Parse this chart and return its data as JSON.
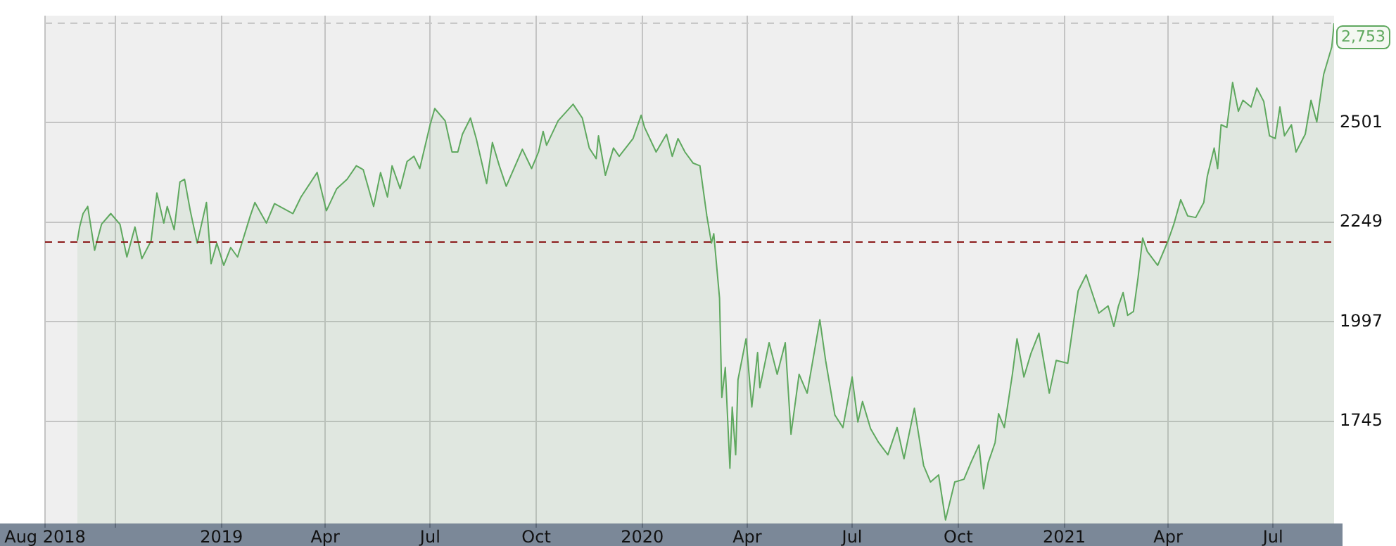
{
  "chart_data": {
    "type": "area",
    "color": "#5fa85f",
    "x": [
      "2018-08-29",
      "2018-08-31",
      "2018-09-03",
      "2018-09-07",
      "2018-09-13",
      "2018-09-19",
      "2018-09-27",
      "2018-10-05",
      "2018-10-11",
      "2018-10-18",
      "2018-10-24",
      "2018-11-01",
      "2018-11-06",
      "2018-11-12",
      "2018-11-15",
      "2018-11-21",
      "2018-11-26",
      "2018-11-30",
      "2018-12-05",
      "2018-12-11",
      "2018-12-19",
      "2018-12-23",
      "2018-12-28",
      "2019-01-03",
      "2019-01-09",
      "2019-01-15",
      "2019-01-26",
      "2019-01-30",
      "2019-02-09",
      "2019-02-16",
      "2019-03-04",
      "2019-03-11",
      "2019-03-25",
      "2019-04-02",
      "2019-04-11",
      "2019-04-20",
      "2019-04-28",
      "2019-05-04",
      "2019-05-13",
      "2019-05-19",
      "2019-05-25",
      "2019-05-29",
      "2019-06-05",
      "2019-06-11",
      "2019-06-17",
      "2019-06-22",
      "2019-07-01",
      "2019-07-05",
      "2019-07-14",
      "2019-07-20",
      "2019-07-25",
      "2019-07-29",
      "2019-08-05",
      "2019-08-10",
      "2019-08-19",
      "2019-08-24",
      "2019-08-30",
      "2019-09-05",
      "2019-09-19",
      "2019-09-27",
      "2019-10-03",
      "2019-10-07",
      "2019-10-10",
      "2019-10-20",
      "2019-11-02",
      "2019-11-10",
      "2019-11-16",
      "2019-11-22",
      "2019-11-24",
      "2019-11-30",
      "2019-12-07",
      "2019-12-12",
      "2019-12-24",
      "2019-12-31",
      "2020-01-03",
      "2020-01-13",
      "2020-01-22",
      "2020-01-27",
      "2020-02-01",
      "2020-02-07",
      "2020-02-14",
      "2020-02-20",
      "2020-02-26",
      "2020-03-01",
      "2020-03-03",
      "2020-03-08",
      "2020-03-10",
      "2020-03-13",
      "2020-03-17",
      "2020-03-19",
      "2020-03-22",
      "2020-03-24",
      "2020-03-31",
      "2020-04-05",
      "2020-04-10",
      "2020-04-12",
      "2020-04-20",
      "2020-04-27",
      "2020-05-04",
      "2020-05-09",
      "2020-05-16",
      "2020-05-23",
      "2020-06-03",
      "2020-06-08",
      "2020-06-16",
      "2020-06-23",
      "2020-07-01",
      "2020-07-06",
      "2020-07-10",
      "2020-07-17",
      "2020-07-24",
      "2020-08-01",
      "2020-08-09",
      "2020-08-15",
      "2020-08-24",
      "2020-09-01",
      "2020-09-07",
      "2020-09-14",
      "2020-09-20",
      "2020-09-28",
      "2020-10-06",
      "2020-10-12",
      "2020-10-19",
      "2020-10-23",
      "2020-10-27",
      "2020-11-02",
      "2020-11-05",
      "2020-11-10",
      "2020-11-17",
      "2020-11-21",
      "2020-11-27",
      "2020-12-03",
      "2020-12-10",
      "2020-12-19",
      "2020-12-25",
      "2021-01-04",
      "2021-01-09",
      "2021-01-13",
      "2021-01-20",
      "2021-01-27",
      "2021-01-31",
      "2021-02-08",
      "2021-02-13",
      "2021-02-17",
      "2021-02-21",
      "2021-02-25",
      "2021-03-02",
      "2021-03-06",
      "2021-03-10",
      "2021-03-14",
      "2021-03-23",
      "2021-04-01",
      "2021-04-06",
      "2021-04-12",
      "2021-04-18",
      "2021-04-25",
      "2021-05-02",
      "2021-05-05",
      "2021-05-11",
      "2021-05-14",
      "2021-05-17",
      "2021-05-22",
      "2021-05-27",
      "2021-06-01",
      "2021-06-05",
      "2021-06-12",
      "2021-06-17",
      "2021-06-23",
      "2021-06-28",
      "2021-07-03",
      "2021-07-07",
      "2021-07-11",
      "2021-07-17",
      "2021-07-21",
      "2021-07-29",
      "2021-08-03",
      "2021-08-08",
      "2021-08-14",
      "2021-08-21",
      "2021-08-23"
    ],
    "values": [
      2202,
      2237,
      2271,
      2289,
      2178,
      2244,
      2271,
      2244,
      2161,
      2237,
      2157,
      2202,
      2323,
      2247,
      2289,
      2230,
      2351,
      2358,
      2278,
      2196,
      2299,
      2144,
      2196,
      2140,
      2185,
      2161,
      2265,
      2299,
      2247,
      2296,
      2271,
      2313,
      2375,
      2278,
      2334,
      2358,
      2392,
      2382,
      2289,
      2375,
      2313,
      2392,
      2334,
      2403,
      2416,
      2385,
      2496,
      2537,
      2506,
      2427,
      2427,
      2472,
      2513,
      2461,
      2347,
      2451,
      2392,
      2340,
      2434,
      2385,
      2427,
      2479,
      2444,
      2506,
      2548,
      2513,
      2437,
      2410,
      2468,
      2368,
      2437,
      2416,
      2461,
      2520,
      2489,
      2427,
      2472,
      2416,
      2461,
      2427,
      2399,
      2392,
      2265,
      2196,
      2220,
      2057,
      1805,
      1881,
      1626,
      1781,
      1660,
      1850,
      1954,
      1781,
      1919,
      1830,
      1944,
      1864,
      1944,
      1712,
      1864,
      1816,
      2002,
      1899,
      1761,
      1729,
      1857,
      1743,
      1795,
      1726,
      1691,
      1660,
      1729,
      1650,
      1778,
      1633,
      1591,
      1609,
      1495,
      1591,
      1598,
      1640,
      1685,
      1574,
      1640,
      1691,
      1764,
      1729,
      1864,
      1954,
      1857,
      1916,
      1968,
      1816,
      1899,
      1892,
      1995,
      2075,
      2116,
      2054,
      2019,
      2037,
      1985,
      2037,
      2071,
      2013,
      2023,
      2109,
      2209,
      2175,
      2140,
      2202,
      2244,
      2306,
      2265,
      2261,
      2299,
      2365,
      2437,
      2385,
      2496,
      2489,
      2603,
      2530,
      2558,
      2541,
      2589,
      2555,
      2468,
      2461,
      2541,
      2468,
      2496,
      2427,
      2472,
      2558,
      2503,
      2624,
      2693,
      2753
    ],
    "xlim": [
      "2018-08-01",
      "2021-08-23"
    ],
    "xticks": [
      {
        "value": "2018-08-01",
        "label": "Aug 2018"
      },
      {
        "value": "2018-10-01",
        "label": null
      },
      {
        "value": "2019-01-01",
        "label": "2019"
      },
      {
        "value": "2019-04-01",
        "label": "Apr"
      },
      {
        "value": "2019-07-01",
        "label": "Jul"
      },
      {
        "value": "2019-10-01",
        "label": "Oct"
      },
      {
        "value": "2020-01-01",
        "label": "2020"
      },
      {
        "value": "2020-04-01",
        "label": "Apr"
      },
      {
        "value": "2020-07-01",
        "label": "Jul"
      },
      {
        "value": "2020-10-01",
        "label": "Oct"
      },
      {
        "value": "2021-01-01",
        "label": "2021"
      },
      {
        "value": "2021-04-01",
        "label": "Apr"
      },
      {
        "value": "2021-07-01",
        "label": "Jul"
      }
    ],
    "ylim": [
      1486,
      2772
    ],
    "yticks": [
      1745,
      1997,
      2249,
      2501
    ],
    "grid": true,
    "ref_lines": [
      {
        "axis": "y",
        "value": 2199,
        "color": "#8b1a1a",
        "line_style": "dashed"
      },
      {
        "axis": "y",
        "value": 2753,
        "label": "2,753",
        "color": "#c8c8c8",
        "line_style": "dashed"
      }
    ]
  }
}
